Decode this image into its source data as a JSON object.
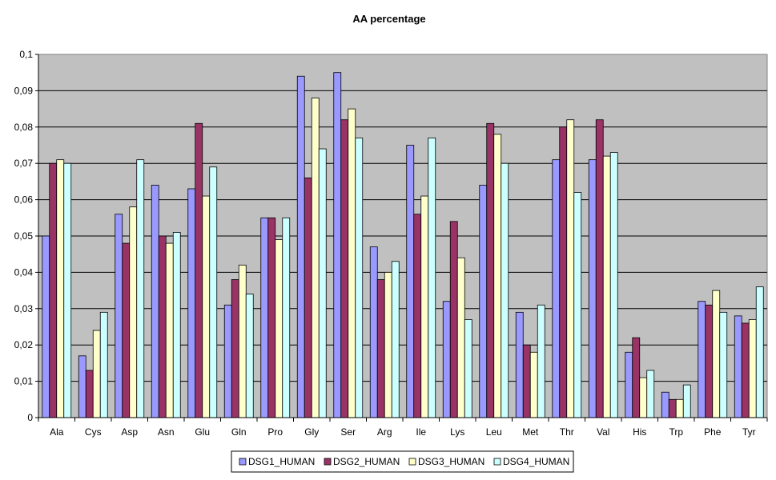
{
  "chart_data": {
    "type": "bar",
    "title": "AA percentage",
    "xlabel": "",
    "ylabel": "",
    "categories": [
      "Ala",
      "Cys",
      "Asp",
      "Asn",
      "Glu",
      "Gln",
      "Pro",
      "Gly",
      "Ser",
      "Arg",
      "Ile",
      "Lys",
      "Leu",
      "Met",
      "Thr",
      "Val",
      "His",
      "Trp",
      "Phe",
      "Tyr"
    ],
    "ylim": [
      0,
      0.1
    ],
    "ytick_values": [
      0,
      0.01,
      0.02,
      0.03,
      0.04,
      0.05,
      0.06,
      0.07,
      0.08,
      0.09,
      0.1
    ],
    "ytick_labels": [
      "0",
      "0,01",
      "0,02",
      "0,03",
      "0,04",
      "0,05",
      "0,06",
      "0,07",
      "0,08",
      "0,09",
      "0,1"
    ],
    "grid": true,
    "legend_position": "bottom",
    "plot_background": "#c0c0c0",
    "series": [
      {
        "name": "DSG1_HUMAN",
        "color": "#9999ff",
        "values": [
          0.05,
          0.017,
          0.056,
          0.064,
          0.063,
          0.031,
          0.055,
          0.094,
          0.095,
          0.047,
          0.075,
          0.032,
          0.064,
          0.029,
          0.071,
          0.071,
          0.018,
          0.007,
          0.032,
          0.028
        ]
      },
      {
        "name": "DSG2_HUMAN",
        "color": "#993366",
        "values": [
          0.07,
          0.013,
          0.048,
          0.05,
          0.081,
          0.038,
          0.055,
          0.066,
          0.082,
          0.038,
          0.056,
          0.054,
          0.081,
          0.02,
          0.08,
          0.082,
          0.022,
          0.005,
          0.031,
          0.026
        ]
      },
      {
        "name": "DSG3_HUMAN",
        "color": "#ffffcc",
        "values": [
          0.071,
          0.024,
          0.058,
          0.048,
          0.061,
          0.042,
          0.049,
          0.088,
          0.085,
          0.04,
          0.061,
          0.044,
          0.078,
          0.018,
          0.082,
          0.072,
          0.011,
          0.005,
          0.035,
          0.027
        ]
      },
      {
        "name": "DSG4_HUMAN",
        "color": "#ccffff",
        "values": [
          0.07,
          0.029,
          0.071,
          0.051,
          0.069,
          0.034,
          0.055,
          0.074,
          0.077,
          0.043,
          0.077,
          0.027,
          0.07,
          0.031,
          0.062,
          0.073,
          0.013,
          0.009,
          0.029,
          0.036
        ]
      }
    ]
  }
}
